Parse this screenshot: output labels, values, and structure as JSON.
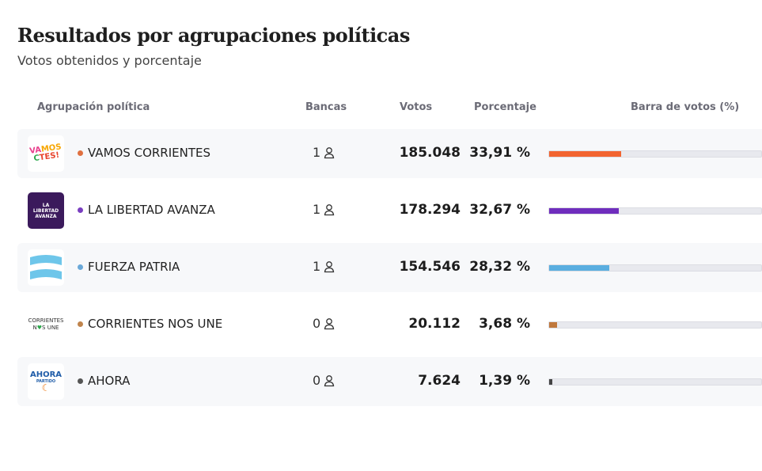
{
  "title": "Resultados por agrupaciones políticas",
  "subtitle": "Votos obtenidos y porcentaje",
  "headers": {
    "party": "Agrupación política",
    "seats": "Bancas",
    "votes": "Votos",
    "percent": "Porcentaje",
    "bar": "Barra de votos (%)"
  },
  "rows": [
    {
      "name": "VAMOS CORRIENTES",
      "seats": "1",
      "votes": "185.048",
      "percent": "33,91 %",
      "pct_value": 33.91,
      "color": "#f26430",
      "dot": "#e07040",
      "logo_text": "VAMOS CTES!"
    },
    {
      "name": "LA LIBERTAD AVANZA",
      "seats": "1",
      "votes": "178.294",
      "percent": "32,67 %",
      "pct_value": 32.67,
      "color": "#6f2dbd",
      "dot": "#7a3fc0",
      "logo_text": "LA LIBERTAD AVANZA"
    },
    {
      "name": "FUERZA PATRIA",
      "seats": "1",
      "votes": "154.546",
      "percent": "28,32 %",
      "pct_value": 28.32,
      "color": "#5aaee0",
      "dot": "#6aa8d8",
      "logo_text": ""
    },
    {
      "name": "CORRIENTES NOS UNE",
      "seats": "0",
      "votes": "20.112",
      "percent": "3,68 %",
      "pct_value": 3.68,
      "color": "#c0783c",
      "dot": "#c0844c",
      "logo_text": "CORRIENTES NOS UNE"
    },
    {
      "name": "AHORA",
      "seats": "0",
      "votes": "7.624",
      "percent": "1,39 %",
      "pct_value": 1.39,
      "color": "#444444",
      "dot": "#555555",
      "logo_text": "AHORA PARTIDO"
    }
  ]
}
